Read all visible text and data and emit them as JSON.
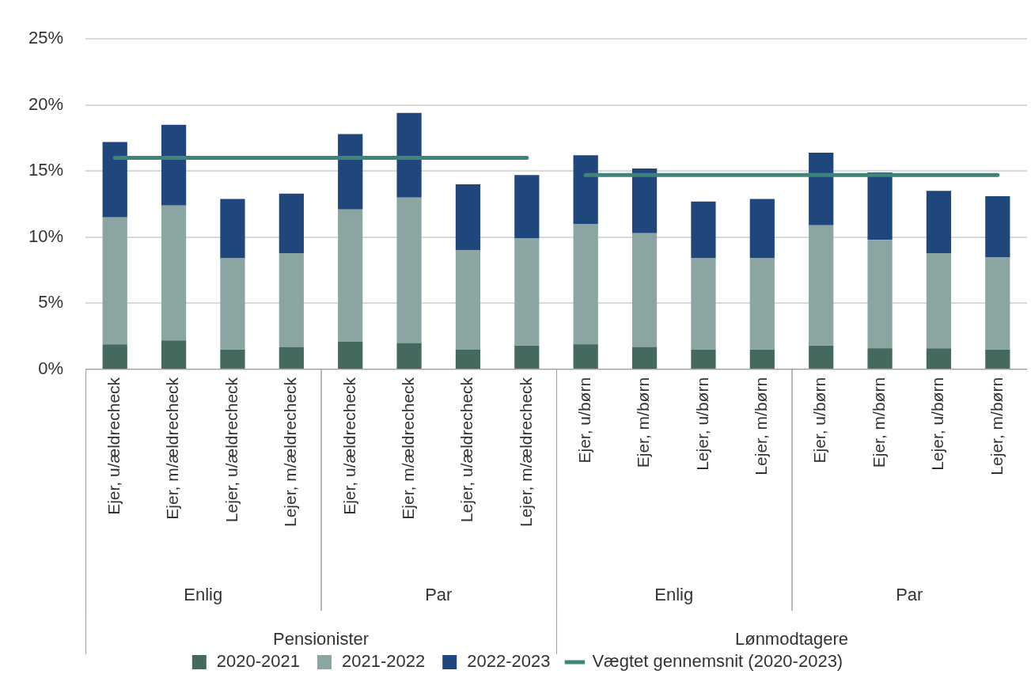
{
  "chart_data": {
    "type": "bar",
    "stacked": true,
    "categories": [
      "Ejer, u/ældrecheck",
      "Ejer, m/ældrecheck",
      "Lejer, u/ældrecheck",
      "Lejer, m/ældrecheck",
      "Ejer, u/ældrecheck",
      "Ejer, m/ældrecheck",
      "Lejer, u/ældrecheck",
      "Lejer, m/ældrecheck",
      "Ejer, u/børn",
      "Ejer, m/børn",
      "Lejer, u/børn",
      "Lejer, m/børn",
      "Ejer, u/børn",
      "Ejer, m/børn",
      "Lejer, u/børn",
      "Lejer, m/børn"
    ],
    "series": [
      {
        "name": "2020-2021",
        "color": "#44695f",
        "values": [
          1.9,
          2.2,
          1.5,
          1.7,
          2.1,
          2.0,
          1.5,
          1.8,
          1.9,
          1.7,
          1.5,
          1.5,
          1.8,
          1.6,
          1.6,
          1.5
        ]
      },
      {
        "name": "2021-2022",
        "color": "#8ba5a3",
        "values": [
          9.6,
          10.2,
          6.9,
          7.1,
          10.0,
          11.0,
          7.5,
          8.1,
          9.1,
          8.6,
          6.9,
          6.9,
          9.1,
          8.2,
          7.2,
          7.0
        ]
      },
      {
        "name": "2022-2023",
        "color": "#1f477c",
        "values": [
          5.7,
          6.1,
          4.5,
          4.5,
          5.7,
          6.4,
          5.0,
          4.8,
          5.2,
          4.9,
          4.3,
          4.5,
          5.5,
          5.1,
          4.7,
          4.6
        ]
      },
      {
        "name": "Vægtet gennemsnit (2020-2023)",
        "type": "line",
        "color": "#3e8478",
        "values": [
          16.0,
          16.0,
          16.0,
          16.0,
          16.0,
          16.0,
          16.0,
          16.0,
          null,
          null,
          null,
          null,
          null,
          null,
          null,
          null
        ]
      },
      {
        "type": "line",
        "color": "#3e8478",
        "values": [
          null,
          null,
          null,
          null,
          null,
          null,
          null,
          null,
          14.7,
          14.7,
          14.7,
          14.7,
          14.7,
          14.7,
          14.7,
          14.7
        ]
      }
    ],
    "ylim": [
      0,
      25
    ],
    "yticks": [
      {
        "value": 0,
        "label": "0%"
      },
      {
        "value": 5,
        "label": "5%"
      },
      {
        "value": 10,
        "label": "10%"
      },
      {
        "value": 15,
        "label": "15%"
      },
      {
        "value": 20,
        "label": "20%"
      },
      {
        "value": 25,
        "label": "25%"
      }
    ],
    "grid": "y",
    "legend": "bottom",
    "marker": "none",
    "line_style": "solid",
    "annotations": [
      "Enlig",
      "Par",
      "Enlig",
      "Par",
      "Pensionister",
      "Lønmodtagere"
    ]
  }
}
